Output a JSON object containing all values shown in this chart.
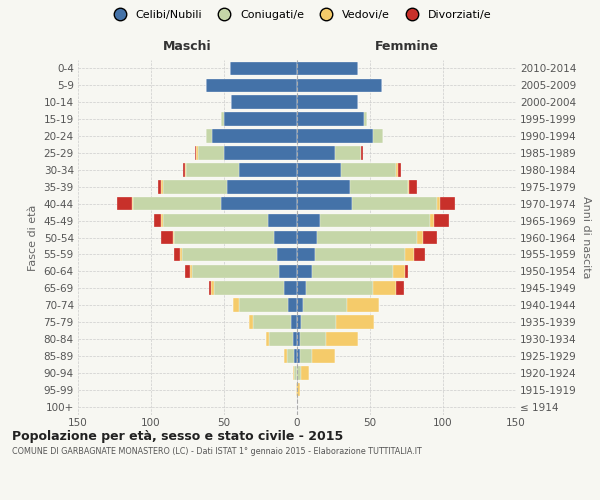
{
  "age_groups": [
    "100+",
    "95-99",
    "90-94",
    "85-89",
    "80-84",
    "75-79",
    "70-74",
    "65-69",
    "60-64",
    "55-59",
    "50-54",
    "45-49",
    "40-44",
    "35-39",
    "30-34",
    "25-29",
    "20-24",
    "15-19",
    "10-14",
    "5-9",
    "0-4"
  ],
  "birth_years": [
    "≤ 1914",
    "1915-1919",
    "1920-1924",
    "1925-1929",
    "1930-1934",
    "1935-1939",
    "1940-1944",
    "1945-1949",
    "1950-1954",
    "1955-1959",
    "1960-1964",
    "1965-1969",
    "1970-1974",
    "1975-1979",
    "1980-1984",
    "1985-1989",
    "1990-1994",
    "1995-1999",
    "2000-2004",
    "2005-2009",
    "2010-2014"
  ],
  "maschi": {
    "celibi": [
      0,
      0,
      0,
      2,
      3,
      4,
      6,
      9,
      12,
      14,
      16,
      20,
      52,
      48,
      40,
      50,
      58,
      50,
      45,
      62,
      46
    ],
    "coniugati": [
      0,
      0,
      2,
      5,
      16,
      26,
      34,
      48,
      60,
      65,
      68,
      72,
      60,
      44,
      36,
      18,
      4,
      2,
      0,
      0,
      0
    ],
    "vedovi": [
      0,
      1,
      1,
      2,
      2,
      3,
      4,
      2,
      1,
      1,
      1,
      1,
      1,
      1,
      1,
      1,
      0,
      0,
      0,
      0,
      0
    ],
    "divorziati": [
      0,
      0,
      0,
      0,
      0,
      0,
      0,
      1,
      4,
      4,
      8,
      5,
      10,
      2,
      1,
      1,
      0,
      0,
      0,
      0,
      0
    ]
  },
  "femmine": {
    "nubili": [
      0,
      0,
      0,
      2,
      2,
      3,
      4,
      6,
      10,
      12,
      14,
      16,
      38,
      36,
      30,
      26,
      52,
      46,
      42,
      58,
      42
    ],
    "coniugate": [
      0,
      0,
      3,
      8,
      18,
      24,
      30,
      46,
      56,
      62,
      68,
      75,
      58,
      40,
      38,
      18,
      7,
      2,
      0,
      0,
      0
    ],
    "vedove": [
      0,
      2,
      5,
      16,
      22,
      26,
      22,
      16,
      8,
      6,
      4,
      3,
      2,
      1,
      1,
      0,
      0,
      0,
      0,
      0,
      0
    ],
    "divorziate": [
      0,
      0,
      0,
      0,
      0,
      0,
      0,
      5,
      2,
      8,
      10,
      10,
      10,
      5,
      2,
      1,
      0,
      0,
      0,
      0,
      0
    ]
  },
  "colors": {
    "celibi": "#4472a8",
    "coniugati": "#c5d6a8",
    "vedovi": "#f5cb6a",
    "divorziati": "#c8302a"
  },
  "xlim": 150,
  "title": "Popolazione per età, sesso e stato civile - 2015",
  "subtitle": "COMUNE DI GARBAGNATE MONASTERO (LC) - Dati ISTAT 1° gennaio 2015 - Elaborazione TUTTITALIA.IT",
  "ylabel_left": "Fasce di età",
  "ylabel_right": "Anni di nascita",
  "header_maschi": "Maschi",
  "header_femmine": "Femmine",
  "legend_labels": [
    "Celibi/Nubili",
    "Coniugati/e",
    "Vedovi/e",
    "Divorziati/e"
  ],
  "bg_color": "#f7f7f2",
  "plot_bg": "#f7f7f2",
  "grid_color": "#cccccc",
  "xticks": [
    0,
    50,
    100,
    150
  ],
  "tick_fontsize": 7.5,
  "label_fontsize": 8,
  "header_fontsize": 9,
  "legend_fontsize": 8
}
